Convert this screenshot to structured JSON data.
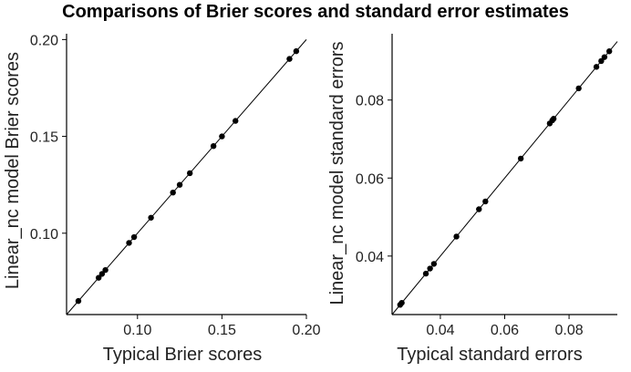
{
  "figure": {
    "title": "Comparisons of Brier scores and standard error estimates"
  },
  "chart_data": [
    {
      "type": "scatter",
      "xlabel": "Typical Brier scores",
      "ylabel": "Linear_nc model Brier scores",
      "xlim": [
        0.058,
        0.2
      ],
      "ylim": [
        0.058,
        0.203
      ],
      "xticks": [
        0.1,
        0.15,
        0.2
      ],
      "xtick_labels": [
        "0.10",
        "0.15",
        "0.20"
      ],
      "yticks": [
        0.1,
        0.15,
        0.2
      ],
      "ytick_labels": [
        "0.10",
        "0.15",
        "0.20"
      ],
      "identity_line": true,
      "grid": false,
      "color": "#000000",
      "series": [
        {
          "x": [
            0.065,
            0.077,
            0.079,
            0.081,
            0.095,
            0.098,
            0.108,
            0.121,
            0.125,
            0.131,
            0.145,
            0.15,
            0.158,
            0.19,
            0.194
          ],
          "y": [
            0.065,
            0.077,
            0.079,
            0.081,
            0.095,
            0.098,
            0.108,
            0.121,
            0.125,
            0.131,
            0.145,
            0.15,
            0.158,
            0.19,
            0.194
          ]
        }
      ]
    },
    {
      "type": "scatter",
      "xlabel": "Typical standard errors",
      "ylabel": "Linear_nc model standard errors",
      "xlim": [
        0.025,
        0.095
      ],
      "ylim": [
        0.025,
        0.097
      ],
      "xticks": [
        0.04,
        0.06,
        0.08
      ],
      "xtick_labels": [
        "0.04",
        "0.06",
        "0.08"
      ],
      "yticks": [
        0.04,
        0.06,
        0.08
      ],
      "ytick_labels": [
        "0.04",
        "0.06",
        "0.08"
      ],
      "identity_line": true,
      "grid": false,
      "color": "#000000",
      "series": [
        {
          "x": [
            0.0275,
            0.028,
            0.0355,
            0.0368,
            0.038,
            0.045,
            0.052,
            0.054,
            0.065,
            0.074,
            0.0748,
            0.0752,
            0.083,
            0.0885,
            0.09,
            0.091,
            0.0925
          ],
          "y": [
            0.0275,
            0.028,
            0.0355,
            0.0368,
            0.038,
            0.045,
            0.052,
            0.054,
            0.065,
            0.074,
            0.0748,
            0.0752,
            0.083,
            0.0885,
            0.09,
            0.091,
            0.0925
          ]
        }
      ]
    }
  ]
}
